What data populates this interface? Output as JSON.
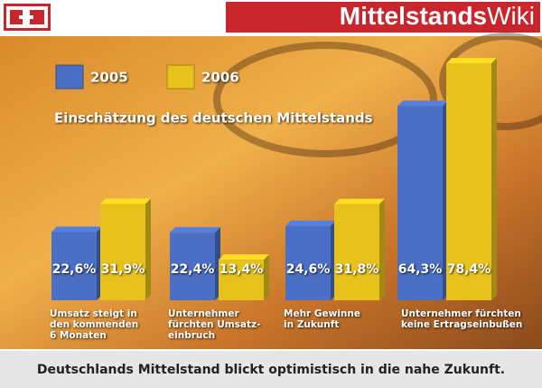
{
  "header": {
    "brand_bold": "Mittelstands",
    "brand_light": "Wiki"
  },
  "chart_data": {
    "type": "bar",
    "title": "Einschätzung des deutschen Mittelstands",
    "categories": [
      [
        "Umsatz steigt in",
        "den kommenden",
        "6 Monaten"
      ],
      [
        "Unternehmer",
        "fürchten Umsatz-",
        "einbruch"
      ],
      [
        "Mehr Gewinne",
        "in Zukunft"
      ],
      [
        "Unternehmer fürchten",
        "keine Ertragseinbußen"
      ]
    ],
    "series": [
      {
        "name": "2005",
        "color": "#4a6fc4",
        "values": [
          22.6,
          22.4,
          24.6,
          64.3
        ],
        "value_labels": [
          "22,6%",
          "22,4%",
          "24,6%",
          "64,3%"
        ]
      },
      {
        "name": "2006",
        "color": "#e8c21c",
        "values": [
          31.9,
          13.4,
          31.8,
          78.4
        ],
        "value_labels": [
          "31,9%",
          "13,4%",
          "31,8%",
          "78,4%"
        ]
      }
    ]
  },
  "caption": "Deutschlands Mittelstand blickt optimistisch in die nahe Zukunft."
}
